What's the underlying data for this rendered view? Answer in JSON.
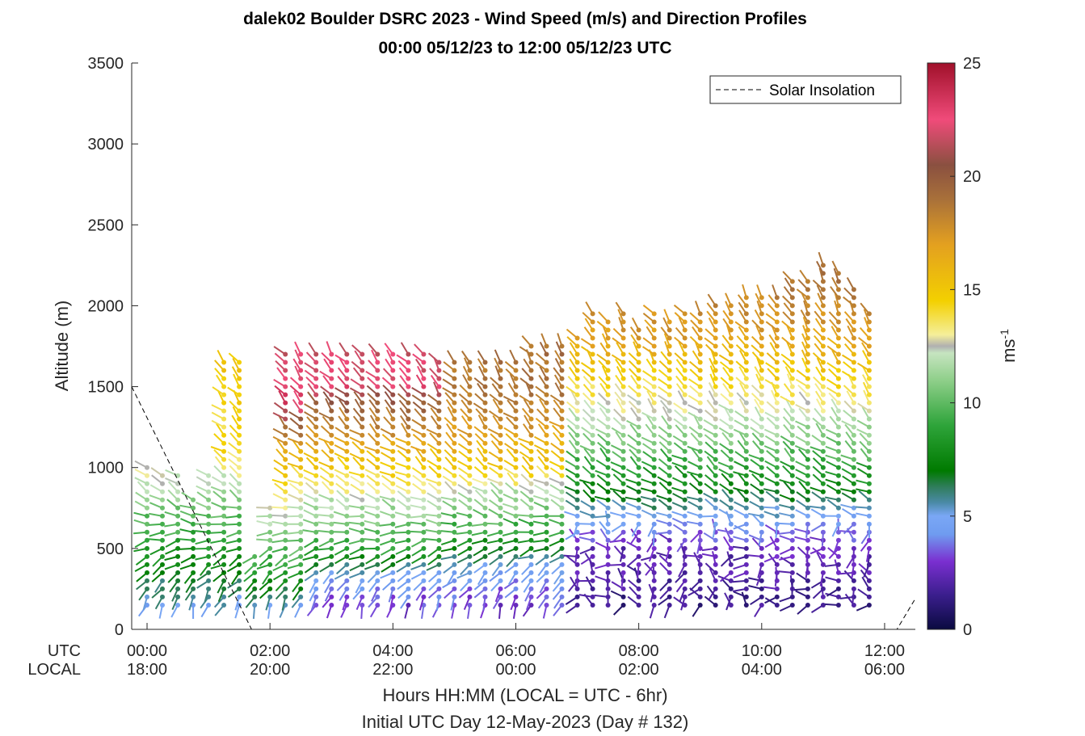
{
  "chart_data": {
    "type": "wind-barb-profile",
    "title": "dalek02 Boulder DSRC 2023 - Wind Speed (m/s) and Direction Profiles",
    "subtitle": "00:00 05/12/23 to 12:00 05/12/23  UTC",
    "ylabel": "Altitude (m)",
    "xlabel": "Hours HH:MM  (LOCAL = UTC - 6hr)",
    "xlabel2": "Initial UTC Day 12-May-2023 (Day # 132)",
    "ylim": [
      0,
      3500
    ],
    "xlim_hours": [
      -0.25,
      12.5
    ],
    "y_ticks": [
      "0",
      "500",
      "1000",
      "1500",
      "2000",
      "2500",
      "3000",
      "3500"
    ],
    "x_row_labels": {
      "utc": "UTC",
      "local": "LOCAL"
    },
    "x_ticks_utc": [
      "00:00",
      "02:00",
      "04:00",
      "06:00",
      "08:00",
      "10:00",
      "12:00"
    ],
    "x_ticks_local": [
      "18:00",
      "20:00",
      "22:00",
      "00:00",
      "02:00",
      "04:00",
      "06:00"
    ],
    "legend": {
      "label": "Solar Insolation",
      "placement": "top-right",
      "style": "dashed"
    },
    "colorbar": {
      "label": "ms",
      "label_superscript": "-1",
      "range": [
        0,
        25
      ],
      "ticks": [
        "0",
        "5",
        "10",
        "15",
        "20",
        "25"
      ],
      "stops": [
        {
          "v": 0,
          "c": "#0a0a40"
        },
        {
          "v": 1.5,
          "c": "#3a1e8c"
        },
        {
          "v": 3,
          "c": "#7a2fd0"
        },
        {
          "v": 4.2,
          "c": "#6f9cf0"
        },
        {
          "v": 5,
          "c": "#7aa7f5"
        },
        {
          "v": 5.6,
          "c": "#4a8aa6"
        },
        {
          "v": 6.3,
          "c": "#2f7d5a"
        },
        {
          "v": 7,
          "c": "#007a00"
        },
        {
          "v": 9,
          "c": "#2ea43a"
        },
        {
          "v": 11,
          "c": "#8fcf8a"
        },
        {
          "v": 12.2,
          "c": "#c6e4c0"
        },
        {
          "v": 12.5,
          "c": "#b0b0b0"
        },
        {
          "v": 13,
          "c": "#f5ef9a"
        },
        {
          "v": 14.5,
          "c": "#f3d000"
        },
        {
          "v": 17,
          "c": "#e3a020"
        },
        {
          "v": 19,
          "c": "#a8703a"
        },
        {
          "v": 20.5,
          "c": "#8a5040"
        },
        {
          "v": 22.5,
          "c": "#f04b7a"
        },
        {
          "v": 25,
          "c": "#a0102a"
        }
      ]
    },
    "solar_insolation": [
      {
        "t": -0.25,
        "alt": 1500
      },
      {
        "t": 1.7,
        "alt": 0
      },
      {
        "t": 12.2,
        "alt": 0
      },
      {
        "t": 12.5,
        "alt": 190
      }
    ],
    "profile_times": [
      0,
      0.25,
      0.5,
      0.75,
      1.0,
      1.25,
      1.5,
      1.75,
      2.0,
      2.25,
      2.5,
      2.75,
      3.0,
      3.25,
      3.5,
      3.75,
      4.0,
      4.25,
      4.5,
      4.75,
      5.0,
      5.25,
      5.5,
      5.75,
      6.0,
      6.25,
      6.5,
      6.75,
      7.0,
      7.25,
      7.5,
      7.75,
      8.0,
      8.25,
      8.5,
      8.75,
      9.0,
      9.25,
      9.5,
      9.75,
      10.0,
      10.25,
      10.5,
      10.75,
      11.0,
      11.25,
      11.5,
      11.75
    ],
    "profile_tops_m": [
      1000,
      950,
      950,
      800,
      950,
      1650,
      1650,
      450,
      750,
      1700,
      1700,
      1700,
      1700,
      1700,
      1700,
      1700,
      1700,
      1700,
      1700,
      1650,
      1650,
      1650,
      1650,
      1650,
      1650,
      1750,
      1750,
      1750,
      1800,
      1950,
      1900,
      1950,
      1850,
      1950,
      1900,
      1950,
      1950,
      2000,
      2000,
      2050,
      2050,
      2050,
      2150,
      2150,
      2250,
      2200,
      2100,
      1950
    ],
    "gate_spacing_m": 50,
    "first_gate_m": 150,
    "speed_model": {
      "segments": [
        {
          "t_from": 0,
          "t_to": 1.75,
          "speed_by_alt": [
            [
              150,
              5
            ],
            [
              400,
              7.5
            ],
            [
              700,
              10
            ],
            [
              900,
              12
            ],
            [
              1100,
              14
            ],
            [
              1700,
              15
            ]
          ]
        },
        {
          "t_from": 1.75,
          "t_to": 2.75,
          "speed_by_alt": [
            [
              150,
              5
            ],
            [
              400,
              9
            ],
            [
              700,
              12
            ],
            [
              1100,
              16
            ],
            [
              1400,
              23
            ],
            [
              1700,
              22
            ]
          ]
        },
        {
          "t_from": 2.75,
          "t_to": 5.0,
          "speed_by_alt": [
            [
              150,
              3
            ],
            [
              350,
              5
            ],
            [
              500,
              9
            ],
            [
              800,
              12
            ],
            [
              1000,
              15
            ],
            [
              1200,
              17.5
            ],
            [
              1400,
              20
            ],
            [
              1500,
              22.5
            ],
            [
              1700,
              22
            ]
          ]
        },
        {
          "t_from": 5.0,
          "t_to": 7.0,
          "speed_by_alt": [
            [
              150,
              3
            ],
            [
              400,
              5
            ],
            [
              600,
              9
            ],
            [
              850,
              12
            ],
            [
              1000,
              15
            ],
            [
              1200,
              17
            ],
            [
              1400,
              18.5
            ],
            [
              1700,
              19
            ]
          ]
        },
        {
          "t_from": 7.0,
          "t_to": 12.0,
          "speed_by_alt": [
            [
              150,
              1.5
            ],
            [
              500,
              2.5
            ],
            [
              700,
              5
            ],
            [
              900,
              8
            ],
            [
              1100,
              10
            ],
            [
              1300,
              12
            ],
            [
              1500,
              14
            ],
            [
              1800,
              17
            ],
            [
              2300,
              19.5
            ]
          ]
        }
      ],
      "direction_deg_by_alt": [
        [
          150,
          200
        ],
        [
          500,
          250
        ],
        [
          800,
          300
        ],
        [
          1500,
          320
        ],
        [
          2300,
          330
        ]
      ]
    }
  }
}
